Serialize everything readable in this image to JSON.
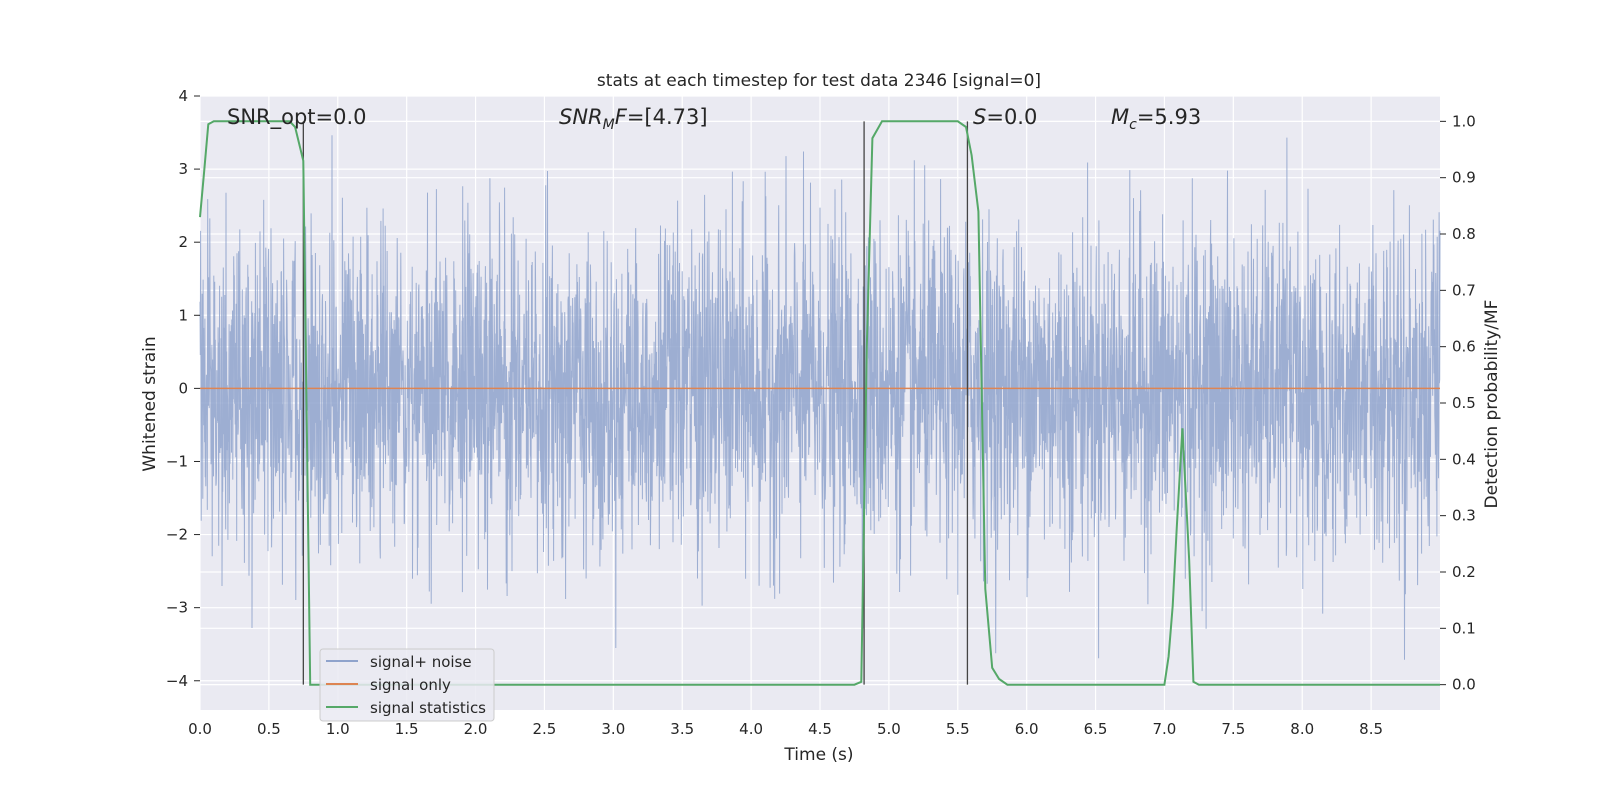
{
  "chart_data": {
    "type": "line",
    "title": "stats at each timestep for test data 2346 [signal=0]",
    "xlabel": "Time (s)",
    "ylabel": "Whitened strain",
    "y2label": "Detection probability/MF",
    "xlim": [
      0.0,
      9.0
    ],
    "ylim": [
      -4.4,
      4.0
    ],
    "y2lim": [
      -0.045,
      1.045
    ],
    "xticks": [
      "0.0",
      "0.5",
      "1.0",
      "1.5",
      "2.0",
      "2.5",
      "3.0",
      "3.5",
      "4.0",
      "4.5",
      "5.0",
      "5.5",
      "6.0",
      "6.5",
      "7.0",
      "7.5",
      "8.0",
      "8.5"
    ],
    "yticks": [
      "4",
      "3",
      "2",
      "1",
      "0",
      "−1",
      "−2",
      "−3",
      "−4"
    ],
    "y2ticks": [
      "1.0",
      "0.9",
      "0.8",
      "0.7",
      "0.6",
      "0.5",
      "0.4",
      "0.3",
      "0.2",
      "0.1",
      "0.0"
    ],
    "grid": true,
    "legend_position": "lower-left",
    "annotations": [
      {
        "id": "snr-opt",
        "text": "SNR_opt=0.0"
      },
      {
        "id": "snr-mf",
        "text": "SNR_MF=[4.73]"
      },
      {
        "id": "s-value",
        "text": "S=0.0"
      },
      {
        "id": "mc-value",
        "text": "M_c=5.93"
      }
    ],
    "vertical_markers_x": [
      0.75,
      4.82,
      5.57
    ],
    "series": [
      {
        "name": "signal+ noise",
        "color": "#8fa3cc",
        "kind": "noise",
        "sample_rate_hz": 450,
        "typical_amplitude": 1.4,
        "range": [
          -4.1,
          3.6
        ]
      },
      {
        "name": "signal only",
        "color": "#dd8452",
        "x": [
          0.0,
          9.0
        ],
        "y": [
          0.0,
          0.0
        ]
      },
      {
        "name": "signal statistics",
        "color": "#55a868",
        "axis": "right",
        "x": [
          0.0,
          0.03,
          0.06,
          0.1,
          0.15,
          0.3,
          0.5,
          0.65,
          0.69,
          0.75,
          0.8,
          0.85,
          1.0,
          2.0,
          3.0,
          4.0,
          4.5,
          4.75,
          4.8,
          4.84,
          4.88,
          4.95,
          5.0,
          5.2,
          5.5,
          5.56,
          5.6,
          5.65,
          5.7,
          5.75,
          5.8,
          5.86,
          5.92,
          6.0,
          6.5,
          7.0,
          7.03,
          7.06,
          7.09,
          7.13,
          7.18,
          7.21,
          7.25,
          7.5,
          8.0,
          8.5,
          9.0
        ],
        "y": [
          0.83,
          0.91,
          0.995,
          1.0,
          1.0,
          1.0,
          1.0,
          1.0,
          0.99,
          0.93,
          0.0,
          0.0,
          0.0,
          0.0,
          0.0,
          0.0,
          0.0,
          0.0,
          0.005,
          0.6,
          0.97,
          1.0,
          1.0,
          1.0,
          1.0,
          0.99,
          0.94,
          0.84,
          0.17,
          0.03,
          0.01,
          0.0,
          0.0,
          0.0,
          0.0,
          0.0,
          0.05,
          0.14,
          0.28,
          0.455,
          0.22,
          0.005,
          0.0,
          0.0,
          0.0,
          0.0,
          0.0
        ]
      }
    ]
  }
}
